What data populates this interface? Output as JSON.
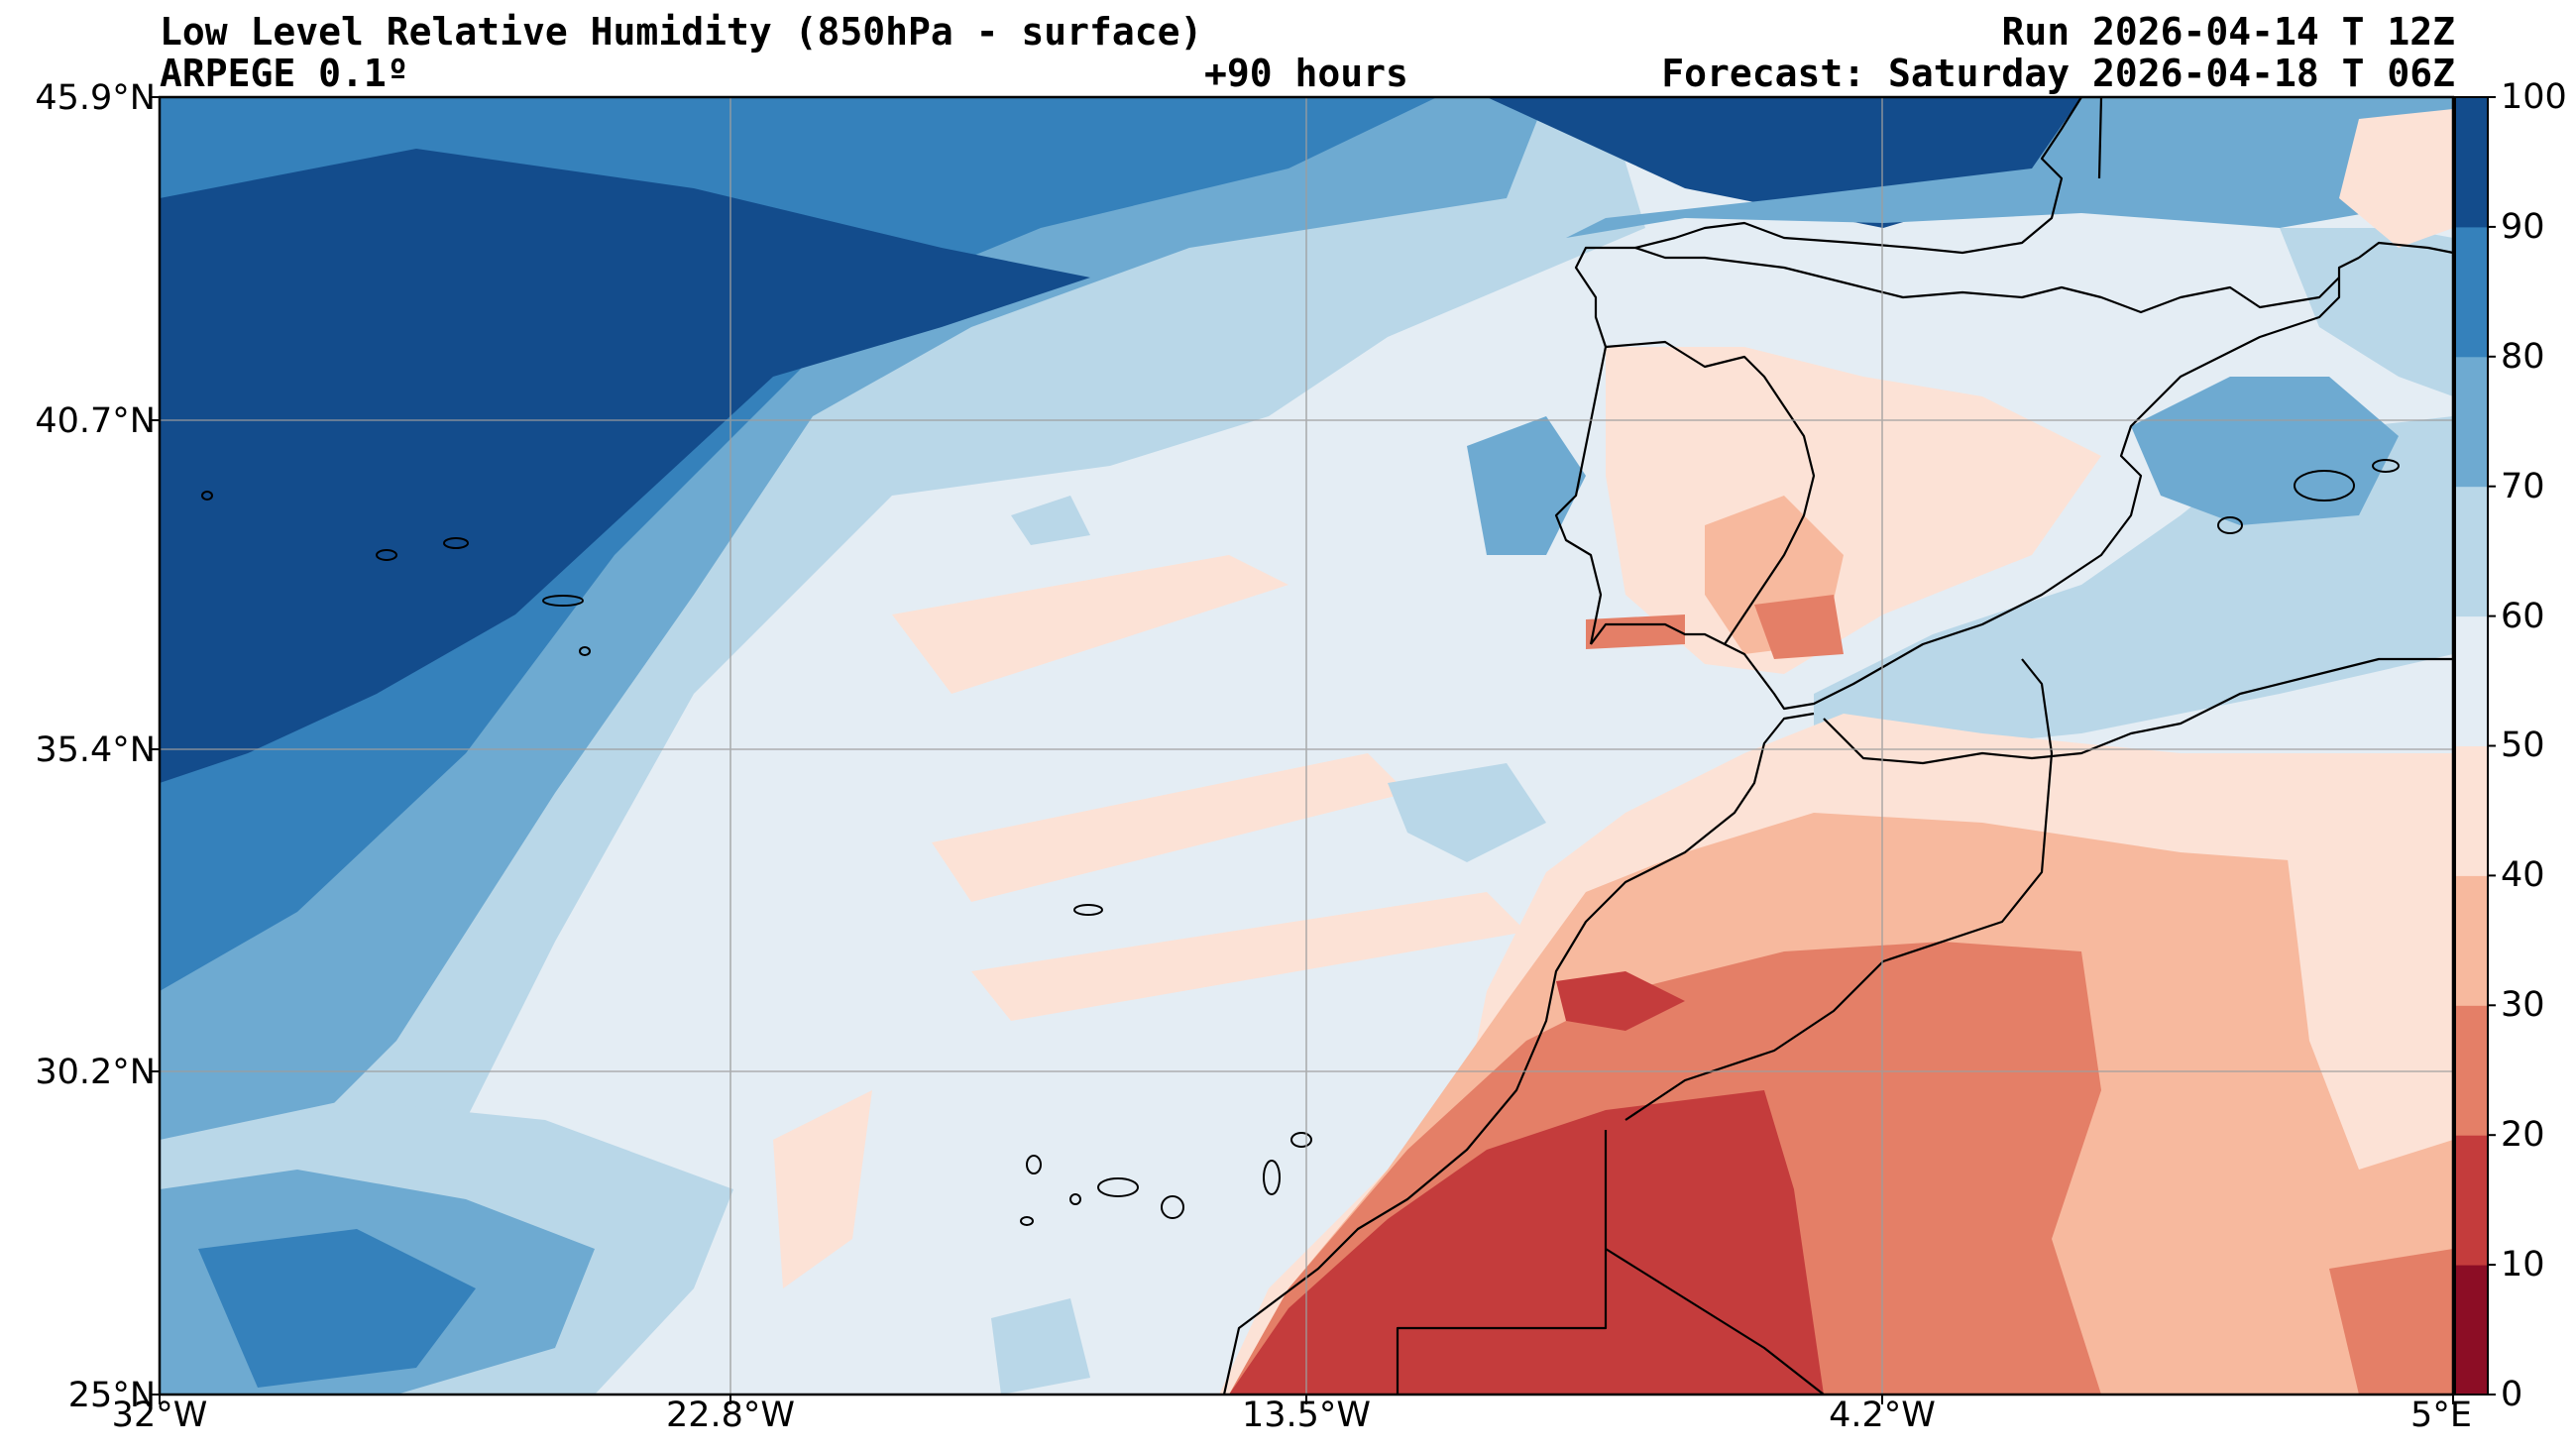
{
  "header": {
    "title": "Low Level Relative Humidity (850hPa - surface)",
    "model": "ARPEGE 0.1º",
    "lead_time": "+90 hours",
    "run": "Run 2026-04-14 T 12Z",
    "forecast": "Forecast: Saturday 2026-04-18 T 06Z"
  },
  "map": {
    "lat_ticks": [
      "45.9°N",
      "40.7°N",
      "35.4°N",
      "30.2°N",
      "25°N"
    ],
    "lon_ticks": [
      "32°W",
      "22.8°W",
      "13.5°W",
      "4.2°W",
      "5°E"
    ],
    "extent": {
      "lon_min": -32,
      "lon_max": 5,
      "lat_min": 25,
      "lat_max": 45.9
    }
  },
  "colorbar": {
    "ticks": [
      "0",
      "10",
      "20",
      "30",
      "40",
      "50",
      "60",
      "70",
      "80",
      "90",
      "100"
    ],
    "colors": [
      "#8c0d25",
      "#c43c3c",
      "#e47f67",
      "#f7b99e",
      "#fce2d6",
      "#e4edf4",
      "#b9d7e8",
      "#6eaad1",
      "#3581bb",
      "#134c8c"
    ]
  }
}
